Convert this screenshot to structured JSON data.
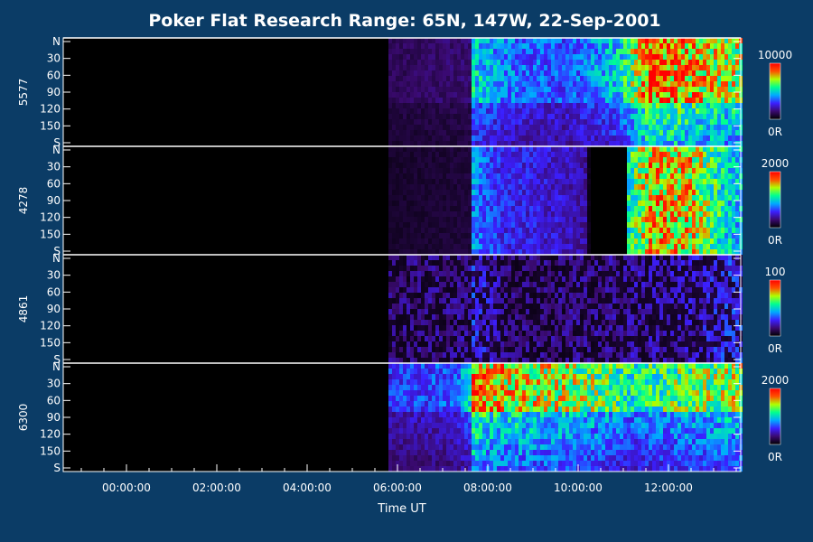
{
  "chart_data": {
    "type": "heatmap",
    "title": "Poker Flat Research Range: 65N, 147W, 22-Sep-2001",
    "xlabel": "Time UT",
    "x_tick_labels": [
      "00:00:00",
      "02:00:00",
      "04:00:00",
      "06:00:00",
      "08:00:00",
      "10:00:00",
      "12:00:00"
    ],
    "x_ticks_hours": [
      0,
      2,
      4,
      6,
      8,
      10,
      12
    ],
    "xlim_hours": [
      -1.4,
      13.6
    ],
    "y_tick_labels": [
      "N",
      "30",
      "60",
      "90",
      "120",
      "150",
      "S"
    ],
    "y_ticks_deg": [
      0,
      30,
      60,
      90,
      120,
      150,
      180
    ],
    "ylim_deg": [
      0,
      180
    ],
    "colormap": [
      "#000000",
      "#3a0a70",
      "#3b1fff",
      "#00aaff",
      "#00ff90",
      "#b0ff00",
      "#ff5000",
      "#ff0000"
    ],
    "panels": [
      {
        "label": "5577",
        "cmax_label": "10000",
        "cmin_label": "0R",
        "activity": [
          [
            5.8,
            0.12
          ],
          [
            7.6,
            0.15
          ],
          [
            7.65,
            0.55
          ],
          [
            8.3,
            0.42
          ],
          [
            9.7,
            0.35
          ],
          [
            10.5,
            0.45
          ],
          [
            11.0,
            0.55
          ],
          [
            11.3,
            0.75
          ],
          [
            11.6,
            0.95
          ],
          [
            12.5,
            0.85
          ],
          [
            13.4,
            0.75
          ]
        ]
      },
      {
        "label": "4278",
        "cmax_label": "2000",
        "cmin_label": "0R",
        "activity": [
          [
            5.8,
            0.06
          ],
          [
            7.6,
            0.08
          ],
          [
            7.65,
            0.42
          ],
          [
            8.3,
            0.3
          ],
          [
            9.6,
            0.25
          ],
          [
            10.2,
            0.2
          ],
          [
            10.25,
            0.0
          ],
          [
            11.05,
            0.0
          ],
          [
            11.1,
            0.55
          ],
          [
            11.6,
            0.85
          ],
          [
            12.5,
            0.8
          ],
          [
            13.4,
            0.5
          ]
        ]
      },
      {
        "label": "4861",
        "cmax_label": "100",
        "cmin_label": "0R",
        "activity": [
          [
            5.8,
            0.18
          ],
          [
            7.6,
            0.2
          ],
          [
            7.65,
            0.32
          ],
          [
            8.5,
            0.18
          ],
          [
            10.5,
            0.2
          ],
          [
            11.0,
            0.22
          ],
          [
            12.5,
            0.25
          ],
          [
            13.4,
            0.32
          ]
        ]
      },
      {
        "label": "6300",
        "cmax_label": "2000",
        "cmin_label": "0R",
        "activity": [
          [
            5.8,
            0.3
          ],
          [
            7.3,
            0.35
          ],
          [
            7.6,
            0.5
          ],
          [
            7.65,
            0.9
          ],
          [
            8.0,
            0.8
          ],
          [
            9.5,
            0.72
          ],
          [
            10.5,
            0.65
          ],
          [
            11.2,
            0.55
          ],
          [
            11.6,
            0.6
          ],
          [
            12.5,
            0.65
          ],
          [
            13.4,
            0.7
          ]
        ]
      }
    ],
    "grid": false
  }
}
